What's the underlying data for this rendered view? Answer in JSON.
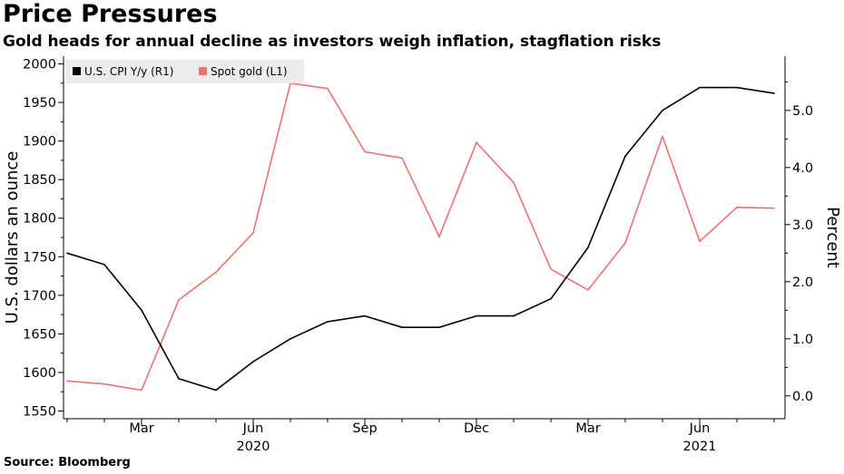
{
  "title": "Price Pressures",
  "subtitle": "Gold heads for annual decline as investors weigh inflation, stagflation risks",
  "source": "Source: Bloomberg",
  "chart_data": {
    "type": "line",
    "x": [
      "2020-01",
      "2020-02",
      "2020-03",
      "2020-04",
      "2020-05",
      "2020-06",
      "2020-07",
      "2020-08",
      "2020-09",
      "2020-10",
      "2020-11",
      "2020-12",
      "2021-01",
      "2021-02",
      "2021-03",
      "2021-04",
      "2021-05",
      "2021-06",
      "2021-07",
      "2021-08"
    ],
    "x_tick_labels": [
      {
        "x": "2020-03",
        "label": "Mar"
      },
      {
        "x": "2020-06",
        "label": "Jun"
      },
      {
        "x": "2020-09",
        "label": "Sep"
      },
      {
        "x": "2020-12",
        "label": "Dec"
      },
      {
        "x": "2021-03",
        "label": "Mar"
      },
      {
        "x": "2021-06",
        "label": "Jun"
      }
    ],
    "year_labels": [
      {
        "x": "2020-06",
        "label": "2020"
      },
      {
        "x": "2021-06",
        "label": "2021"
      }
    ],
    "series": [
      {
        "name": "U.S. CPI Y/y (R1)",
        "axis": "right",
        "color": "#000000",
        "values": [
          2.5,
          2.3,
          1.5,
          0.3,
          0.1,
          0.6,
          1.0,
          1.3,
          1.4,
          1.2,
          1.2,
          1.4,
          1.4,
          1.7,
          2.6,
          4.2,
          5.0,
          5.4,
          5.4,
          5.3
        ]
      },
      {
        "name": "Spot gold (L1)",
        "axis": "left",
        "color": "#f07070",
        "values": [
          1589,
          1585,
          1577,
          1694,
          1730,
          1781,
          1975,
          1968,
          1886,
          1878,
          1776,
          1898,
          1846,
          1734,
          1707,
          1768,
          1906,
          1770,
          1814,
          1813
        ]
      }
    ],
    "y_left": {
      "label": "U.S. dollars an ounce",
      "min": 1540,
      "max": 2010,
      "ticks": [
        1550,
        1600,
        1650,
        1700,
        1750,
        1800,
        1850,
        1900,
        1950,
        2000
      ]
    },
    "y_right": {
      "label": "Percent",
      "min": -0.4,
      "max": 5.95,
      "ticks": [
        0.0,
        1.0,
        2.0,
        3.0,
        4.0,
        5.0
      ],
      "tick_labels": [
        "0.0",
        "1.0",
        "2.0",
        "3.0",
        "4.0",
        "5.0"
      ]
    },
    "legend_position": "top-left",
    "grid": false
  }
}
